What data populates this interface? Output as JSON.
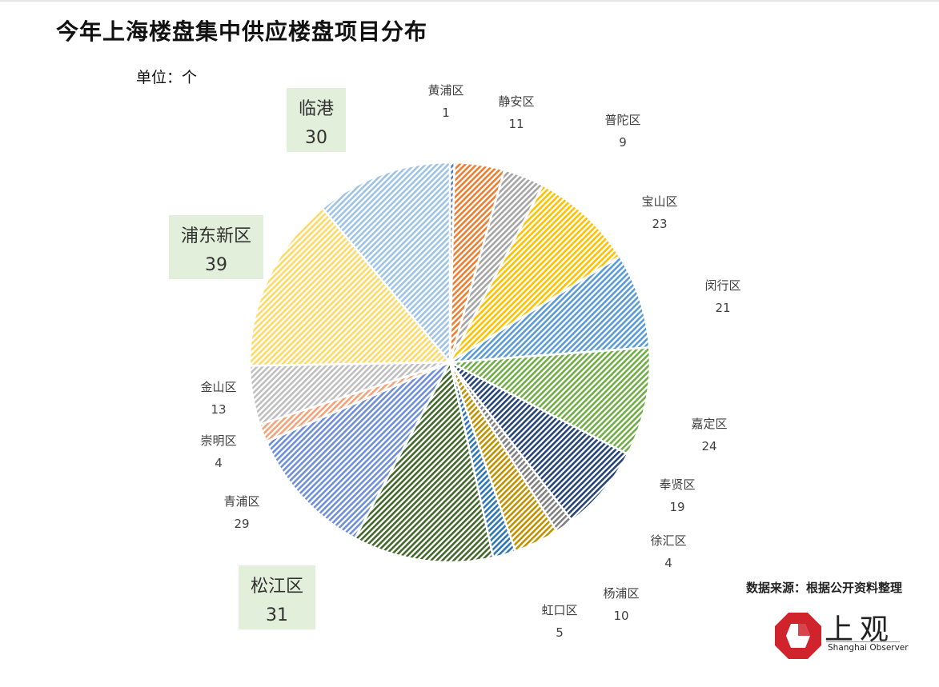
{
  "header": {
    "title": "今年上海楼盘集中供应楼盘项目分布",
    "unit_label": "单位：个"
  },
  "footer": {
    "source": "数据来源：根据公开资料整理",
    "brand_cn": "上观",
    "brand_en": "Shanghai Observer",
    "brand_color": "#d0232b"
  },
  "chart_data": {
    "type": "pie",
    "title": "今年上海楼盘集中供应楼盘项目分布",
    "unit": "单位：个",
    "slices": [
      {
        "label": "黄浦区",
        "value": 1,
        "color": "#4472c4"
      },
      {
        "label": "静安区",
        "value": 11,
        "color": "#ed7d31"
      },
      {
        "label": "普陀区",
        "value": 9,
        "color": "#a5a5a5"
      },
      {
        "label": "宝山区",
        "value": 23,
        "color": "#ffc000"
      },
      {
        "label": "闵行区",
        "value": 21,
        "color": "#5b9bd5"
      },
      {
        "label": "嘉定区",
        "value": 24,
        "color": "#70ad47"
      },
      {
        "label": "奉贤区",
        "value": 19,
        "color": "#264478"
      },
      {
        "label": "徐汇区",
        "value": 4,
        "color": "#7f7f7f"
      },
      {
        "label": "杨浦区",
        "value": 10,
        "color": "#bf9000"
      },
      {
        "label": "虹口区",
        "value": 5,
        "color": "#2e75b6"
      },
      {
        "label": "松江区",
        "value": 31,
        "color": "#43682b",
        "highlight": true
      },
      {
        "label": "青浦区",
        "value": 29,
        "color": "#6f8fd8"
      },
      {
        "label": "崇明区",
        "value": 4,
        "color": "#f4a27a"
      },
      {
        "label": "金山区",
        "value": 13,
        "color": "#bfbfbf"
      },
      {
        "label": "浦东新区",
        "value": 39,
        "color": "#ffd966",
        "highlight": true
      },
      {
        "label": "临港",
        "value": 30,
        "color": "#9dc3e6",
        "highlight": true
      }
    ],
    "highlight_box_color": "#e2efda",
    "legend": "none"
  }
}
